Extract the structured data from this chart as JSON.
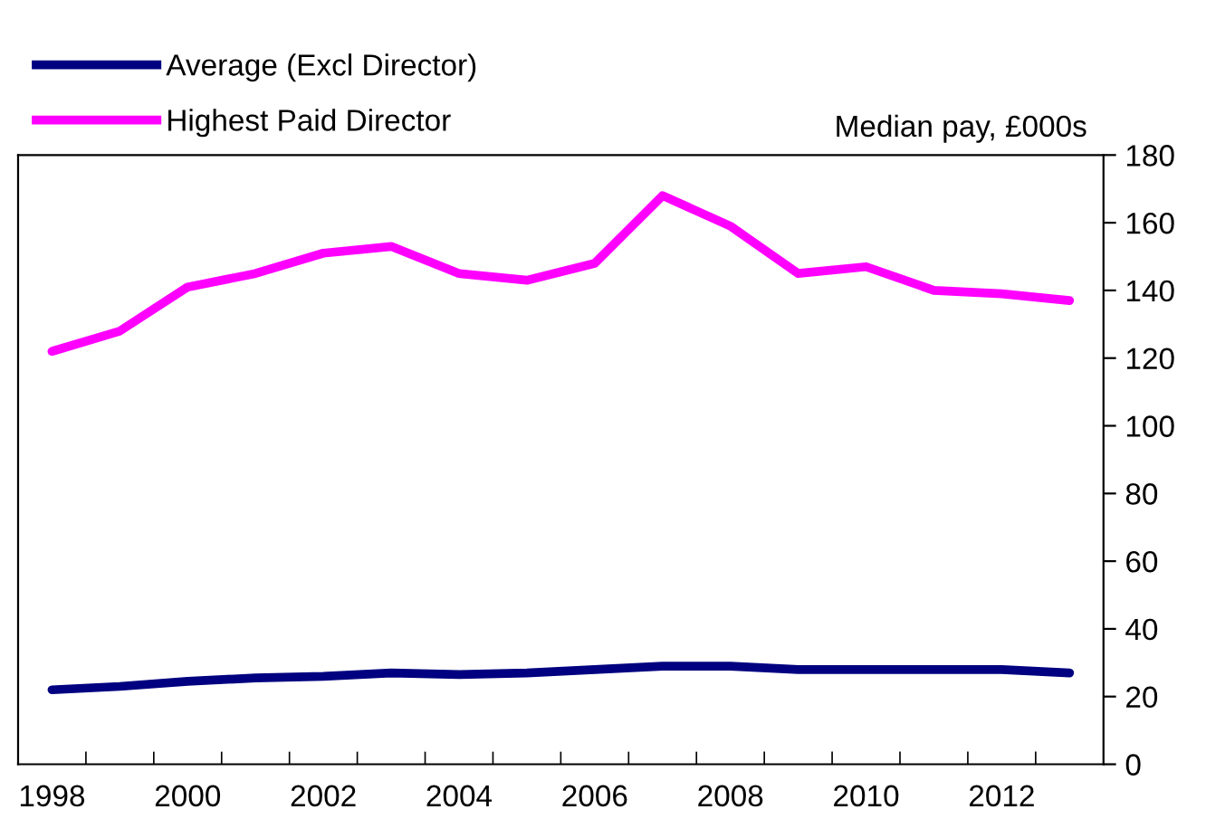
{
  "chart_data": {
    "type": "line",
    "categories": [
      "1998",
      null,
      "2000",
      null,
      "2002",
      null,
      "2004",
      null,
      "2006",
      null,
      "2008",
      null,
      "2010",
      null,
      "2012",
      null
    ],
    "series": [
      {
        "name": "Average (Excl Director)",
        "color": "#000080",
        "values": [
          22,
          23,
          24.5,
          25.5,
          26,
          27,
          26.5,
          27,
          28,
          29,
          29,
          28,
          28,
          28,
          28,
          27
        ]
      },
      {
        "name": "Highest Paid Director",
        "color": "#ff00ff",
        "values": [
          122,
          128,
          141,
          145,
          151,
          153,
          145,
          143,
          148,
          168,
          159,
          145,
          147,
          140,
          139,
          137
        ]
      }
    ],
    "ylabel": "Median pay, £000s",
    "ylim": [
      0,
      180
    ],
    "yticks": [
      0,
      20,
      40,
      60,
      80,
      100,
      120,
      140,
      160,
      180
    ],
    "grid": false,
    "legend": "top left",
    "marker": "none",
    "line_style": "solid"
  }
}
